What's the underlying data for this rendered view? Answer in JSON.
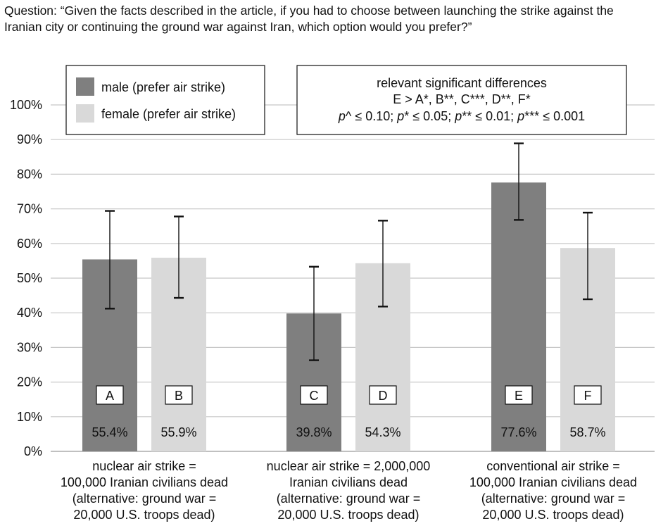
{
  "question": "Question: “Given the facts described in the article, if you had to choose between launching the strike against the Iranian city or continuing the ground war against Iran, which option would you prefer?”",
  "chart_data": {
    "type": "bar",
    "title": "",
    "xlabel": "",
    "ylabel": "",
    "ylim": [
      0,
      100
    ],
    "y_ticks": [
      "0%",
      "10%",
      "20%",
      "30%",
      "40%",
      "50%",
      "60%",
      "70%",
      "80%",
      "90%",
      "100%"
    ],
    "grid": true,
    "legend_placement": "top-left",
    "categories": [
      [
        "nuclear air strike =",
        "100,000 Iranian civilians dead",
        "(alternative: ground war =",
        "20,000 U.S. troops dead)"
      ],
      [
        "nuclear air strike = 2,000,000",
        "Iranian civilians dead",
        "(alternative: ground war =",
        "20,000 U.S. troops dead)"
      ],
      [
        "conventional air strike =",
        "100,000 Iranian civilians dead",
        "(alternative: ground war =",
        "20,000 U.S. troops dead)"
      ]
    ],
    "series": [
      {
        "name": "male (prefer air strike)",
        "color": "#7f7f7f",
        "values": [
          55.4,
          39.8,
          77.6
        ],
        "value_labels": [
          "55.4%",
          "39.8%",
          "77.6%"
        ],
        "letters": [
          "A",
          "C",
          "E"
        ],
        "error_low": [
          41.2,
          26.3,
          66.8
        ],
        "error_high": [
          69.4,
          53.3,
          88.9
        ]
      },
      {
        "name": "female (prefer air strike)",
        "color": "#d9d9d9",
        "values": [
          55.9,
          54.3,
          58.7
        ],
        "value_labels": [
          "55.9%",
          "54.3%",
          "58.7%"
        ],
        "letters": [
          "B",
          "D",
          "F"
        ],
        "error_low": [
          44.3,
          41.8,
          43.9
        ],
        "error_high": [
          67.8,
          66.6,
          68.9
        ]
      }
    ],
    "annotation": {
      "title": "relevant significant differences",
      "differences": "E > A*, B**, C***, D**, F*",
      "significance": [
        {
          "symbol": "p^",
          "value": "0.10"
        },
        {
          "symbol": "p*",
          "value": "0.05"
        },
        {
          "symbol": "p**",
          "value": "0.01"
        },
        {
          "symbol": "p***",
          "value": "0.001"
        }
      ]
    }
  }
}
